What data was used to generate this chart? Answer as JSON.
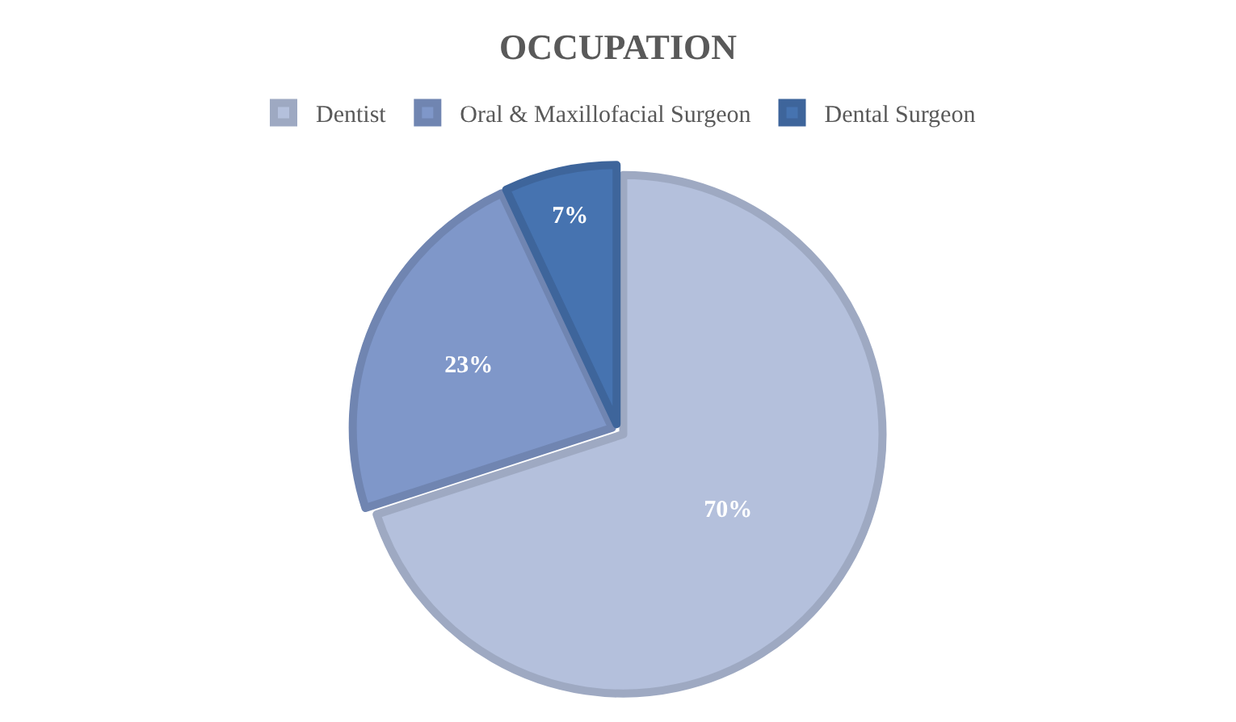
{
  "chart_data": {
    "type": "pie",
    "title": "OCCUPATION",
    "categories": [
      "Dentist",
      "Oral & Maxillofacial Surgeon",
      "Dental Surgeon"
    ],
    "values": [
      70,
      23,
      7
    ],
    "value_labels": [
      "70%",
      "23%",
      "7%"
    ],
    "colors": [
      "#b4c0dc",
      "#7f97c9",
      "#4673b0"
    ],
    "legend": "top"
  }
}
